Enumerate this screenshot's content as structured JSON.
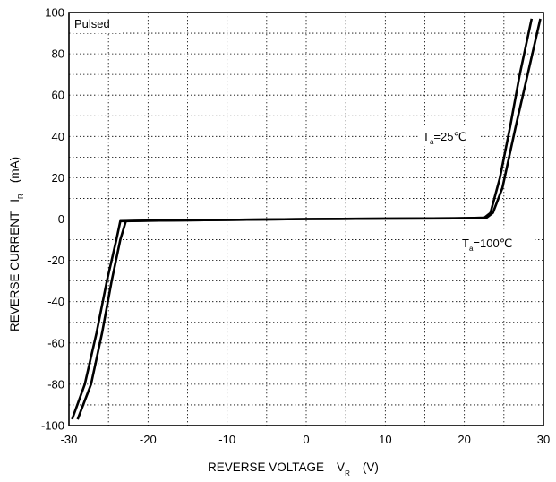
{
  "chart_data": {
    "type": "line",
    "xlabel": "REVERSE VOLTAGE",
    "xlabel_symbol": "V",
    "xlabel_subscript": "R",
    "xlabel_unit": "(V)",
    "ylabel": "REVERSE CURRENT",
    "ylabel_symbol": "I",
    "ylabel_subscript": "R",
    "ylabel_unit": "(mA)",
    "xlim": [
      -30,
      30
    ],
    "ylim": [
      -100,
      100
    ],
    "x_ticks": [
      "-30",
      "-20",
      "-10",
      "0",
      "10",
      "20",
      "30"
    ],
    "y_ticks": [
      "100",
      "80",
      "60",
      "40",
      "20",
      "0",
      "-20",
      "-40",
      "-60",
      "-80",
      "-100"
    ],
    "grid": true,
    "annotations": [
      {
        "id": "pulsed",
        "text": "Pulsed"
      },
      {
        "id": "ta25",
        "symbol": "T",
        "subscript": "a",
        "text": "=25℃"
      },
      {
        "id": "ta100",
        "symbol": "T",
        "subscript": "a",
        "text": "=100℃"
      }
    ],
    "series": [
      {
        "x": [
          -29.6,
          -28.0,
          -26.5,
          -25.2,
          -24.0,
          -23.5,
          -20,
          -10,
          0,
          10,
          20,
          22.5,
          23.3,
          24.5,
          25.8,
          27.0,
          28.5
        ],
        "y": [
          -97,
          -80,
          -55,
          -30,
          -10,
          -1,
          -0.8,
          -0.4,
          0,
          0.2,
          0.4,
          0.6,
          3,
          20,
          45,
          70,
          97
        ]
      },
      {
        "x": [
          -28.9,
          -27.2,
          -25.8,
          -24.6,
          -23.5,
          -22.8,
          -20,
          -10,
          0,
          10,
          20,
          22.8,
          23.6,
          24.8,
          26.5,
          28.0,
          29.6
        ],
        "y": [
          -97,
          -80,
          -55,
          -30,
          -10,
          -1,
          -0.8,
          -0.4,
          0,
          0.2,
          0.4,
          0.6,
          3,
          15,
          45,
          70,
          97
        ]
      }
    ]
  }
}
